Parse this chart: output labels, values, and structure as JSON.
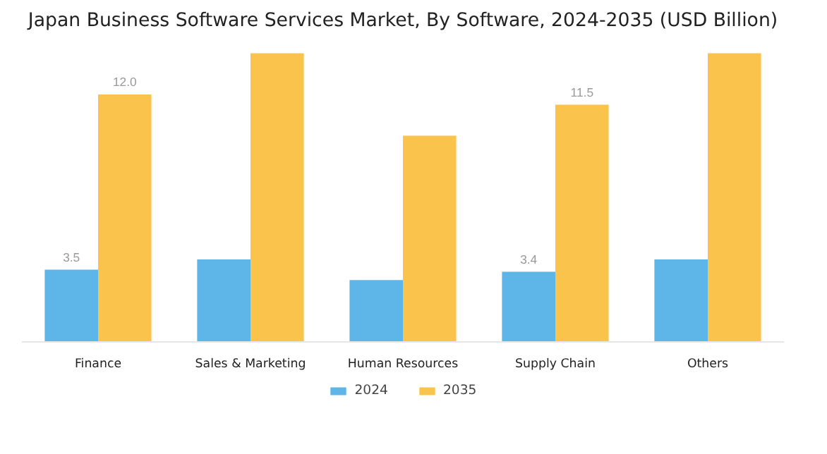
{
  "chart_data": {
    "type": "bar",
    "title": "Japan Business Software Services Market, By Software, 2024-2035 (USD Billion)",
    "categories": [
      "Finance",
      "Sales & Marketing",
      "Human Resources",
      "Supply Chain",
      "Others"
    ],
    "series": [
      {
        "name": "2024",
        "color": "#5db5e8",
        "values": [
          3.5,
          4.0,
          3.0,
          3.4,
          4.0
        ],
        "value_labels": [
          "3.5",
          null,
          null,
          "3.4",
          null
        ]
      },
      {
        "name": "2035",
        "color": "#fac44c",
        "values": [
          12.0,
          14.0,
          10.0,
          11.5,
          14.0
        ],
        "value_labels": [
          "12.0",
          null,
          null,
          "11.5",
          null
        ]
      }
    ],
    "legend": "bottom",
    "tick_labels": "x"
  }
}
